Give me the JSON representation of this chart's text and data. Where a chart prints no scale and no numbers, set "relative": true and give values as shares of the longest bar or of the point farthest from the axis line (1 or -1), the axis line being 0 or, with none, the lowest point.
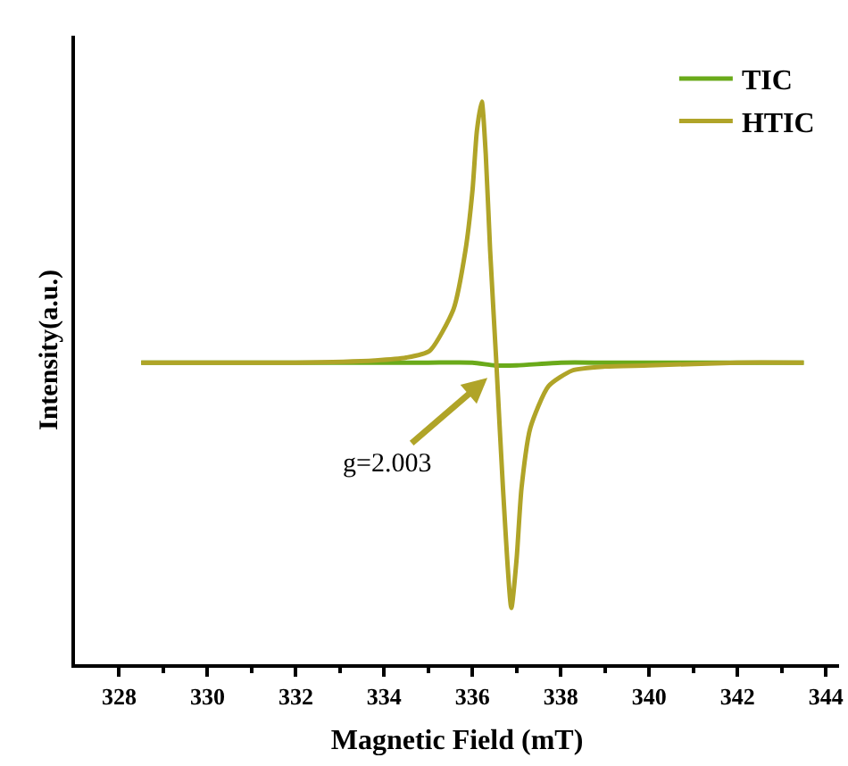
{
  "chart_data": {
    "type": "line",
    "xlabel": "Magnetic Field (mT)",
    "ylabel": "Intensity(a.u.)",
    "relative": true,
    "xlim": [
      327,
      344.3
    ],
    "xticks": [
      328,
      {
        "value": 329,
        "label": null
      },
      330,
      {
        "value": 331,
        "label": null
      },
      332,
      {
        "value": 333,
        "label": null
      },
      334,
      {
        "value": 335,
        "label": null
      },
      336,
      {
        "value": 337,
        "label": null
      },
      338,
      {
        "value": 339,
        "label": null
      },
      340,
      {
        "value": 341,
        "label": null
      },
      342,
      {
        "value": 343,
        "label": null
      },
      344
    ],
    "series": [
      {
        "name": "TIC",
        "color": "#6aaa1a",
        "x": [
          328.5,
          330,
          332,
          334,
          335,
          336,
          336.5,
          337,
          338,
          339,
          340,
          342,
          343.5
        ],
        "values": [
          0.536,
          0.536,
          0.536,
          0.536,
          0.536,
          0.536,
          0.531,
          0.531,
          0.536,
          0.536,
          0.536,
          0.536,
          0.536
        ]
      },
      {
        "name": "HTIC",
        "color": "#b0a428",
        "x": [
          328.5,
          330,
          332,
          333.8,
          334.5,
          335.03,
          335.57,
          335.84,
          336.0,
          336.1,
          336.21,
          336.3,
          336.4,
          336.54,
          336.69,
          336.88,
          337.0,
          337.11,
          337.31,
          337.72,
          338.26,
          339,
          340,
          342,
          343.5
        ],
        "values": [
          0.536,
          0.536,
          0.536,
          0.54,
          0.545,
          0.557,
          0.631,
          0.735,
          0.842,
          0.948,
          1,
          0.907,
          0.735,
          0.536,
          0.313,
          0.1,
          0.188,
          0.313,
          0.42,
          0.494,
          0.522,
          0.529,
          0.531,
          0.536,
          0.536
        ]
      }
    ],
    "annotations": [
      {
        "text": "g=2.003",
        "x": 336.4,
        "y": 0.513
      }
    ],
    "legend": "top right",
    "grid": false,
    "marker": "none",
    "line_style": "solid"
  }
}
